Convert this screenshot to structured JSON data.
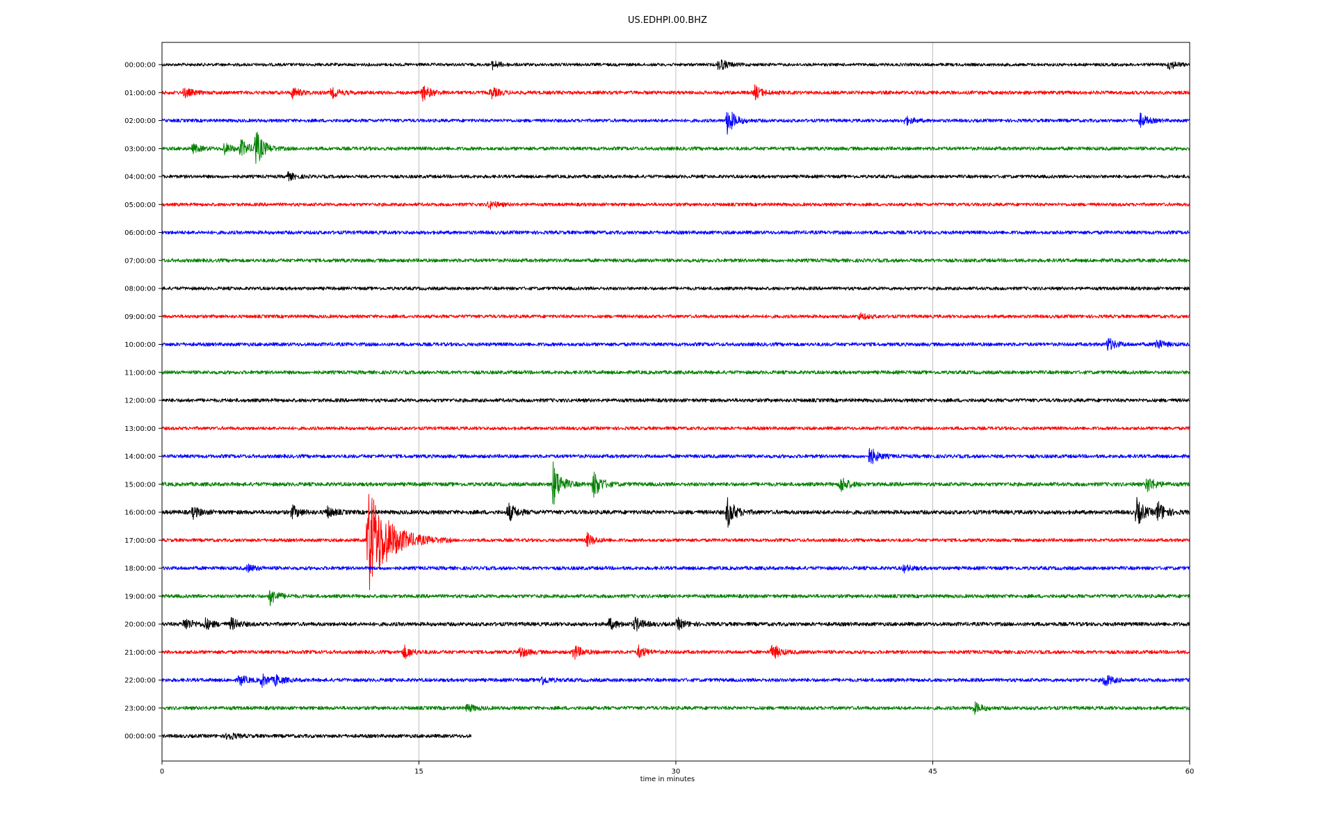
{
  "chart_data": {
    "type": "line",
    "title": "US.EDHPI.00.BHZ",
    "xlabel": "time in minutes",
    "ylabel": "",
    "xlim": [
      0,
      60
    ],
    "x_ticks": [
      "0",
      "15",
      "30",
      "45",
      "60"
    ],
    "x_tick_values": [
      0,
      15,
      30,
      45,
      60
    ],
    "vertical_gridlines_at": [
      15,
      30,
      45
    ],
    "grid": true,
    "legend": "none",
    "row_labels": [
      "00:00:00",
      "01:00:00",
      "02:00:00",
      "03:00:00",
      "04:00:00",
      "05:00:00",
      "06:00:00",
      "07:00:00",
      "08:00:00",
      "09:00:00",
      "10:00:00",
      "11:00:00",
      "12:00:00",
      "13:00:00",
      "14:00:00",
      "15:00:00",
      "16:00:00",
      "17:00:00",
      "18:00:00",
      "19:00:00",
      "20:00:00",
      "21:00:00",
      "22:00:00",
      "23:00:00",
      "00:00:00"
    ],
    "color_cycle": [
      "#000000",
      "#ff0000",
      "#0000ff",
      "#008000"
    ],
    "series": [
      {
        "color": "#000000",
        "end_min": 60,
        "noise": 2.2,
        "events": [
          {
            "t": 19.3,
            "a": 6
          },
          {
            "t": 32.5,
            "a": 10
          },
          {
            "t": 58.8,
            "a": 7
          }
        ]
      },
      {
        "color": "#ff0000",
        "end_min": 60,
        "noise": 2.6,
        "events": [
          {
            "t": 1.3,
            "a": 7
          },
          {
            "t": 7.6,
            "a": 8
          },
          {
            "t": 9.9,
            "a": 7
          },
          {
            "t": 15.2,
            "a": 12
          },
          {
            "t": 19.2,
            "a": 8
          },
          {
            "t": 34.6,
            "a": 10
          }
        ]
      },
      {
        "color": "#0000ff",
        "end_min": 60,
        "noise": 2.4,
        "events": [
          {
            "t": 33.0,
            "a": 20
          },
          {
            "t": 43.4,
            "a": 6
          },
          {
            "t": 57.1,
            "a": 10
          }
        ]
      },
      {
        "color": "#008000",
        "end_min": 60,
        "noise": 2.6,
        "events": [
          {
            "t": 1.8,
            "a": 6
          },
          {
            "t": 3.6,
            "a": 8
          },
          {
            "t": 4.6,
            "a": 12
          },
          {
            "t": 5.4,
            "a": 30
          }
        ]
      },
      {
        "color": "#000000",
        "end_min": 60,
        "noise": 2.4,
        "events": [
          {
            "t": 7.3,
            "a": 6
          }
        ]
      },
      {
        "color": "#ff0000",
        "end_min": 60,
        "noise": 2.4,
        "events": [
          {
            "t": 19.1,
            "a": 6
          }
        ]
      },
      {
        "color": "#0000ff",
        "end_min": 60,
        "noise": 2.6,
        "events": []
      },
      {
        "color": "#008000",
        "end_min": 60,
        "noise": 2.6,
        "events": []
      },
      {
        "color": "#000000",
        "end_min": 60,
        "noise": 2.4,
        "events": []
      },
      {
        "color": "#ff0000",
        "end_min": 60,
        "noise": 2.4,
        "events": [
          {
            "t": 40.7,
            "a": 5
          }
        ]
      },
      {
        "color": "#0000ff",
        "end_min": 60,
        "noise": 2.6,
        "events": [
          {
            "t": 55.2,
            "a": 10
          },
          {
            "t": 58.0,
            "a": 8
          }
        ]
      },
      {
        "color": "#008000",
        "end_min": 60,
        "noise": 2.6,
        "events": []
      },
      {
        "color": "#000000",
        "end_min": 60,
        "noise": 2.6,
        "events": []
      },
      {
        "color": "#ff0000",
        "end_min": 60,
        "noise": 2.4,
        "events": []
      },
      {
        "color": "#0000ff",
        "end_min": 60,
        "noise": 2.6,
        "events": [
          {
            "t": 41.3,
            "a": 14
          }
        ]
      },
      {
        "color": "#008000",
        "end_min": 60,
        "noise": 2.8,
        "events": [
          {
            "t": 22.8,
            "a": 34
          },
          {
            "t": 25.2,
            "a": 20
          },
          {
            "t": 39.6,
            "a": 12
          },
          {
            "t": 57.5,
            "a": 12
          }
        ]
      },
      {
        "color": "#000000",
        "end_min": 60,
        "noise": 3.0,
        "events": [
          {
            "t": 1.8,
            "a": 8
          },
          {
            "t": 7.6,
            "a": 9
          },
          {
            "t": 9.6,
            "a": 8
          },
          {
            "t": 20.2,
            "a": 14
          },
          {
            "t": 33.0,
            "a": 22
          },
          {
            "t": 56.9,
            "a": 20
          },
          {
            "t": 58.1,
            "a": 16
          }
        ]
      },
      {
        "color": "#ff0000",
        "end_min": 60,
        "noise": 2.4,
        "events": [
          {
            "t": 12.0,
            "a": 80
          },
          {
            "t": 24.8,
            "a": 10
          }
        ]
      },
      {
        "color": "#0000ff",
        "end_min": 60,
        "noise": 2.6,
        "events": [
          {
            "t": 5.0,
            "a": 5
          },
          {
            "t": 43.3,
            "a": 5
          }
        ]
      },
      {
        "color": "#008000",
        "end_min": 60,
        "noise": 2.6,
        "events": [
          {
            "t": 6.3,
            "a": 12
          }
        ]
      },
      {
        "color": "#000000",
        "end_min": 60,
        "noise": 2.8,
        "events": [
          {
            "t": 1.3,
            "a": 10
          },
          {
            "t": 2.5,
            "a": 8
          },
          {
            "t": 4.0,
            "a": 9
          },
          {
            "t": 26.1,
            "a": 8
          },
          {
            "t": 27.6,
            "a": 10
          },
          {
            "t": 30.1,
            "a": 8
          }
        ]
      },
      {
        "color": "#ff0000",
        "end_min": 60,
        "noise": 2.6,
        "events": [
          {
            "t": 14.1,
            "a": 10
          },
          {
            "t": 20.9,
            "a": 8
          },
          {
            "t": 24.0,
            "a": 12
          },
          {
            "t": 27.8,
            "a": 9
          },
          {
            "t": 35.6,
            "a": 12
          }
        ]
      },
      {
        "color": "#0000ff",
        "end_min": 60,
        "noise": 2.6,
        "events": [
          {
            "t": 4.5,
            "a": 8
          },
          {
            "t": 5.8,
            "a": 9
          },
          {
            "t": 6.6,
            "a": 7
          },
          {
            "t": 22.1,
            "a": 7
          },
          {
            "t": 55.0,
            "a": 10
          }
        ]
      },
      {
        "color": "#008000",
        "end_min": 60,
        "noise": 2.6,
        "events": [
          {
            "t": 17.8,
            "a": 6
          },
          {
            "t": 47.4,
            "a": 8
          }
        ]
      },
      {
        "color": "#000000",
        "end_min": 18.05,
        "noise": 2.6,
        "events": [
          {
            "t": 3.8,
            "a": 6
          }
        ]
      }
    ]
  }
}
